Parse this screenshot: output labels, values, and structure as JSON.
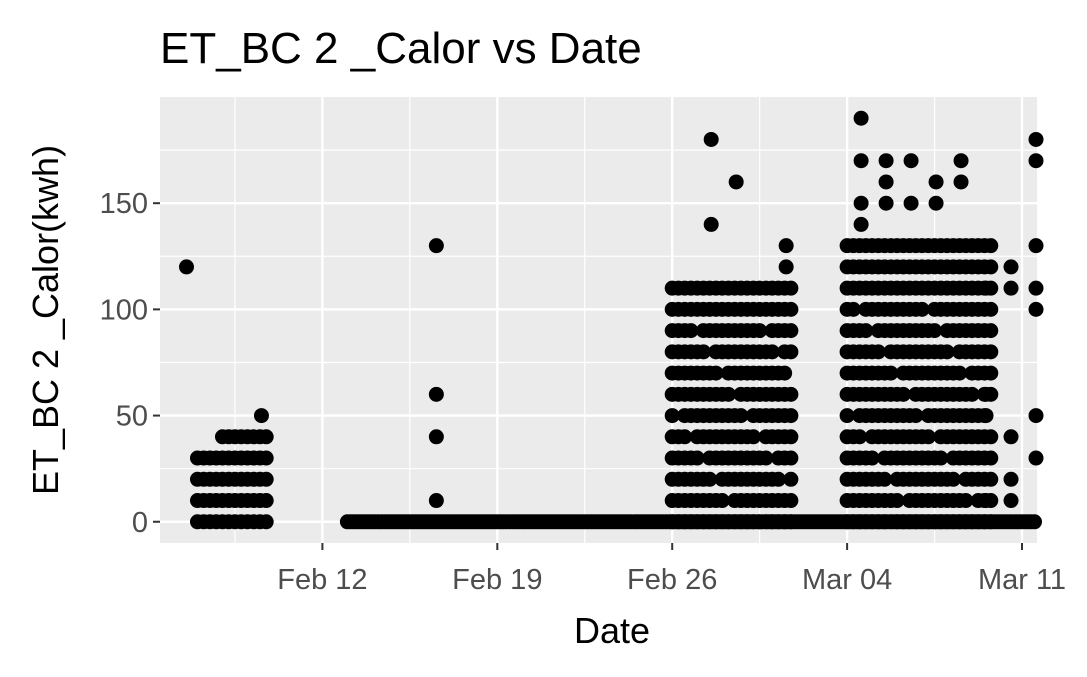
{
  "chart_data": {
    "type": "scatter",
    "title": "ET_BC 2 _Calor vs Date",
    "xlabel": "Date",
    "ylabel": "ET_BC 2 _Calor(kwh)",
    "x_ticks": [
      "Feb 12",
      "Feb 19",
      "Feb 26",
      "Mar 04",
      "Mar 11"
    ],
    "x_tick_dates": [
      "2024-02-12",
      "2024-02-19",
      "2024-02-26",
      "2024-03-04",
      "2024-03-11"
    ],
    "xlim": [
      "2024-02-06",
      "2024-03-11"
    ],
    "y_ticks": [
      0,
      50,
      100,
      150
    ],
    "ylim": [
      -10,
      200
    ],
    "grid": true,
    "legend": "none",
    "point_color": "#000000",
    "panel_color": "#ebebeb",
    "grid_color": "#ffffff",
    "clusters": [
      {
        "x_start": "2024-02-07",
        "x_end": "2024-02-09",
        "y_levels": [
          0,
          10,
          20,
          30
        ]
      },
      {
        "x_start": "2024-02-08",
        "x_end": "2024-02-09",
        "y_levels": [
          40
        ]
      },
      {
        "x_start": "2024-02-26",
        "x_end": "2024-03-01",
        "y_levels": [
          0,
          10,
          20,
          30,
          40,
          50,
          60,
          70,
          80,
          90
        ]
      },
      {
        "x_start": "2024-02-26",
        "x_end": "2024-03-01",
        "y_levels": [
          100,
          110
        ]
      },
      {
        "x_start": "2024-03-04",
        "x_end": "2024-03-09",
        "y_levels": [
          0,
          10,
          20,
          30,
          40,
          50,
          60,
          70,
          80,
          90,
          100
        ]
      },
      {
        "x_start": "2024-03-04",
        "x_end": "2024-03-09",
        "y_levels": [
          110,
          120,
          130
        ]
      }
    ],
    "zero_run": {
      "x_start": "2024-02-13",
      "x_end": "2024-03-11",
      "y": 0
    },
    "points": [
      {
        "x": "2024-02-06",
        "y": 120
      },
      {
        "x": "2024-02-09",
        "y": 50
      },
      {
        "x": "2024-02-16",
        "y": 130
      },
      {
        "x": "2024-02-16",
        "y": 60
      },
      {
        "x": "2024-02-16",
        "y": 40
      },
      {
        "x": "2024-02-16",
        "y": 10
      },
      {
        "x": "2024-02-27",
        "y": 180
      },
      {
        "x": "2024-02-27",
        "y": 140
      },
      {
        "x": "2024-02-28",
        "y": 160
      },
      {
        "x": "2024-03-01",
        "y": 130
      },
      {
        "x": "2024-03-01",
        "y": 120
      },
      {
        "x": "2024-03-04",
        "y": 190
      },
      {
        "x": "2024-03-04",
        "y": 170
      },
      {
        "x": "2024-03-05",
        "y": 170
      },
      {
        "x": "2024-03-05",
        "y": 160
      },
      {
        "x": "2024-03-05",
        "y": 150
      },
      {
        "x": "2024-03-04",
        "y": 150
      },
      {
        "x": "2024-03-04",
        "y": 140
      },
      {
        "x": "2024-03-06",
        "y": 170
      },
      {
        "x": "2024-03-06",
        "y": 150
      },
      {
        "x": "2024-03-07",
        "y": 160
      },
      {
        "x": "2024-03-07",
        "y": 150
      },
      {
        "x": "2024-03-08",
        "y": 170
      },
      {
        "x": "2024-03-08",
        "y": 160
      },
      {
        "x": "2024-03-10",
        "y": 120
      },
      {
        "x": "2024-03-10",
        "y": 110
      },
      {
        "x": "2024-03-09",
        "y": 110
      },
      {
        "x": "2024-03-09",
        "y": 60
      },
      {
        "x": "2024-03-09",
        "y": 50
      },
      {
        "x": "2024-03-10",
        "y": 40
      },
      {
        "x": "2024-03-09",
        "y": 10
      },
      {
        "x": "2024-03-10",
        "y": 10
      },
      {
        "x": "2024-03-10",
        "y": 20
      },
      {
        "x": "2024-03-11",
        "y": 180
      },
      {
        "x": "2024-03-11",
        "y": 170
      },
      {
        "x": "2024-03-11",
        "y": 130
      },
      {
        "x": "2024-03-11",
        "y": 110
      },
      {
        "x": "2024-03-11",
        "y": 100
      },
      {
        "x": "2024-03-11",
        "y": 50
      },
      {
        "x": "2024-03-11",
        "y": 30
      }
    ]
  }
}
